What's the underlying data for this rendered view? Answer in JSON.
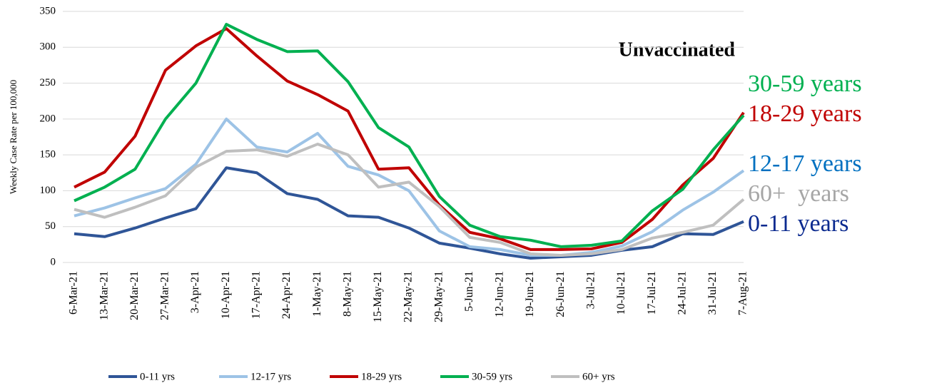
{
  "chart_data": {
    "type": "line",
    "y_label": "Weekly Case Rate per 100,000",
    "annotation": "Unvaccinated",
    "categories": [
      "6-Mar-21",
      "13-Mar-21",
      "20-Mar-21",
      "27-Mar-21",
      "3-Apr-21",
      "10-Apr-21",
      "17-Apr-21",
      "24-Apr-21",
      "1-May-21",
      "8-May-21",
      "15-May-21",
      "22-May-21",
      "29-May-21",
      "5-Jun-21",
      "12-Jun-21",
      "19-Jun-21",
      "26-Jun-21",
      "3-Jul-21",
      "10-Jul-21",
      "17-Jul-21",
      "24-Jul-21",
      "31-Jul-21",
      "7-Aug-21"
    ],
    "series": [
      {
        "name": "0-11 yrs",
        "color": "#2f5597",
        "end_label": "0-11 years",
        "end_label_color": "#0b2a8f",
        "values": [
          40,
          36,
          48,
          62,
          75,
          132,
          125,
          96,
          88,
          65,
          63,
          48,
          27,
          20,
          12,
          6,
          8,
          10,
          17,
          22,
          40,
          39,
          57
        ]
      },
      {
        "name": "12-17 yrs",
        "color": "#9dc3e6",
        "end_label": "12-17 years",
        "end_label_color": "#0070c0",
        "values": [
          65,
          76,
          90,
          103,
          137,
          200,
          161,
          154,
          180,
          134,
          122,
          100,
          44,
          22,
          18,
          10,
          10,
          14,
          23,
          43,
          73,
          98,
          128
        ]
      },
      {
        "name": "18-29 yrs",
        "color": "#c00000",
        "end_label": "18-29 years",
        "end_label_color": "#c00000",
        "values": [
          105,
          126,
          176,
          268,
          302,
          326,
          288,
          253,
          234,
          211,
          130,
          132,
          80,
          42,
          33,
          18,
          18,
          19,
          28,
          60,
          108,
          145,
          209
        ]
      },
      {
        "name": "30-59 yrs",
        "color": "#00b050",
        "end_label": "30-59 years",
        "end_label_color": "#00b050",
        "values": [
          86,
          105,
          130,
          200,
          250,
          332,
          311,
          294,
          295,
          252,
          188,
          161,
          92,
          52,
          36,
          31,
          22,
          24,
          30,
          72,
          102,
          157,
          205
        ]
      },
      {
        "name": "60+ yrs",
        "color": "#bfbfbf",
        "end_label": "60+  years",
        "end_label_color": "#a6a6a6",
        "values": [
          74,
          63,
          77,
          93,
          133,
          155,
          157,
          148,
          165,
          150,
          105,
          112,
          78,
          35,
          28,
          12,
          10,
          12,
          18,
          34,
          42,
          52,
          88
        ]
      }
    ],
    "ylim": [
      0,
      350
    ],
    "yticks": [
      0,
      50,
      100,
      150,
      200,
      250,
      300,
      350
    ],
    "grid": true
  }
}
